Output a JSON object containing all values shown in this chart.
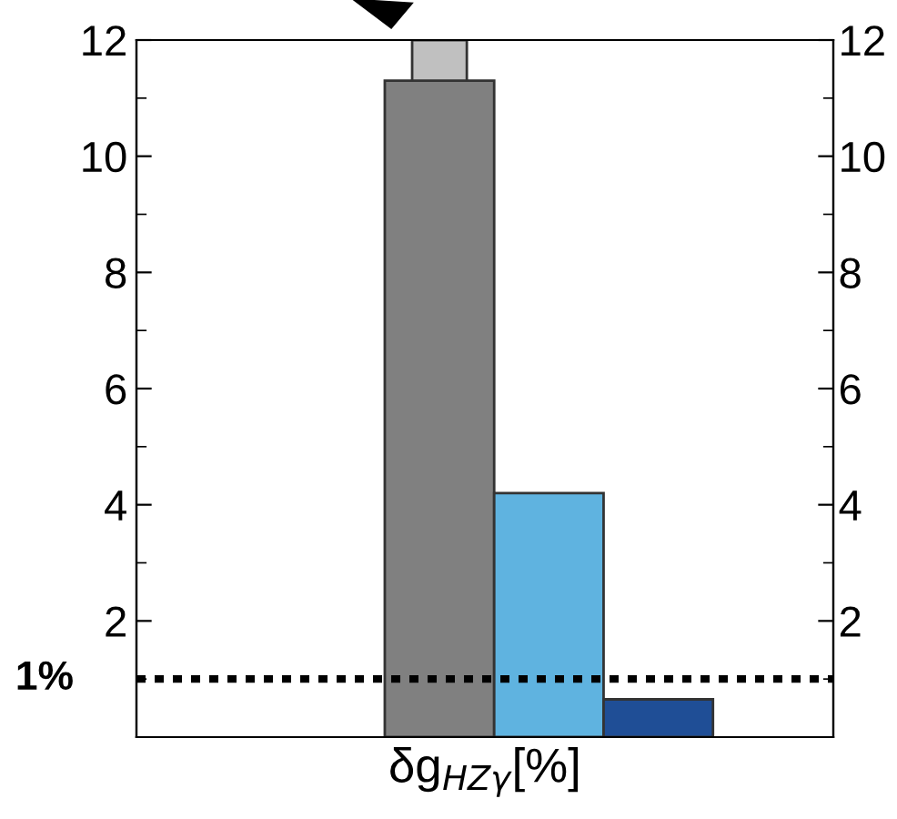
{
  "chart_data": {
    "type": "bar",
    "stacked": true,
    "categories": [
      null,
      null,
      null
    ],
    "series": [
      {
        "colors": [
          "#808080",
          "#5fb3e0",
          "#1f4e96"
        ],
        "values": [
          11.3,
          4.2,
          0.65
        ]
      },
      {
        "color": "#c0c0c0",
        "values": [
          0.7,
          null,
          null
        ]
      }
    ],
    "xlabel": "δg$_{HZγ}$[%]",
    "ylim": [
      0,
      12
    ],
    "yticks": [
      2,
      4,
      6,
      8,
      10,
      12
    ],
    "y2lim": [
      0,
      12
    ],
    "y2ticks": [
      2,
      4,
      6,
      8,
      10,
      12
    ],
    "tick_labels": "y",
    "grid": false,
    "legend": false,
    "ref_lines": [
      {
        "axis": "y",
        "value": 1,
        "label": "1%",
        "color": "#000000",
        "line_style": "dotted"
      }
    ]
  }
}
